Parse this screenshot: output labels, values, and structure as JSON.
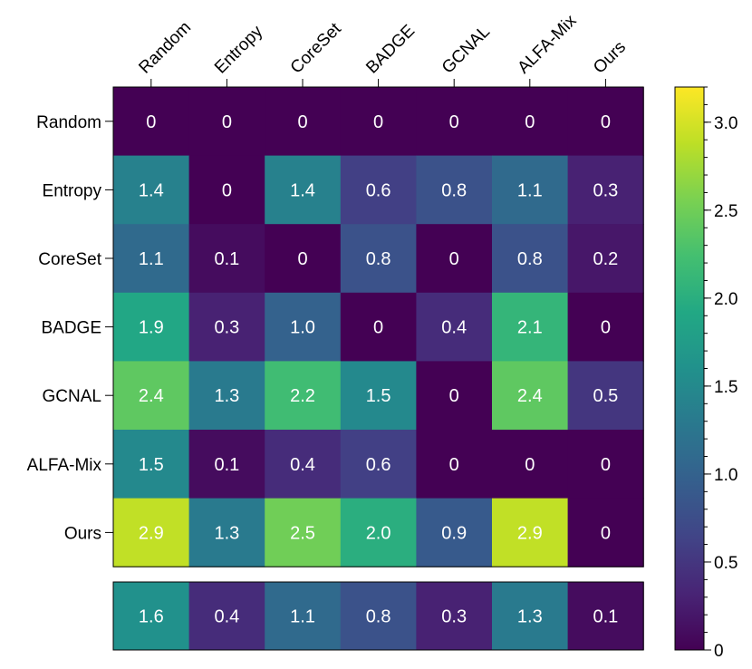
{
  "chart_data": {
    "type": "heatmap",
    "columns": [
      "Random",
      "Entropy",
      "CoreSet",
      "BADGE",
      "GCNAL",
      "ALFA-Mix",
      "Ours"
    ],
    "rows": [
      "Random",
      "Entropy",
      "CoreSet",
      "BADGE",
      "GCNAL",
      "ALFA-Mix",
      "Ours"
    ],
    "values": [
      [
        0,
        0,
        0,
        0,
        0,
        0,
        0
      ],
      [
        1.4,
        0,
        1.4,
        0.6,
        0.8,
        1.1,
        0.3
      ],
      [
        1.1,
        0.1,
        0,
        0.8,
        0,
        0.8,
        0.2
      ],
      [
        1.9,
        0.3,
        1.0,
        0,
        0.4,
        2.1,
        0
      ],
      [
        2.4,
        1.3,
        2.2,
        1.5,
        0,
        2.4,
        0.5
      ],
      [
        1.5,
        0.1,
        0.4,
        0.6,
        0,
        0,
        0
      ],
      [
        2.9,
        1.3,
        2.5,
        2.0,
        0.9,
        2.9,
        0
      ]
    ],
    "value_labels": [
      [
        "0",
        "0",
        "0",
        "0",
        "0",
        "0",
        "0"
      ],
      [
        "1.4",
        "0",
        "1.4",
        "0.6",
        "0.8",
        "1.1",
        "0.3"
      ],
      [
        "1.1",
        "0.1",
        "0",
        "0.8",
        "0",
        "0.8",
        "0.2"
      ],
      [
        "1.9",
        "0.3",
        "1.0",
        "0",
        "0.4",
        "2.1",
        "0"
      ],
      [
        "2.4",
        "1.3",
        "2.2",
        "1.5",
        "0",
        "2.4",
        "0.5"
      ],
      [
        "1.5",
        "0.1",
        "0.4",
        "0.6",
        "0",
        "0",
        "0"
      ],
      [
        "2.9",
        "1.3",
        "2.5",
        "2.0",
        "0.9",
        "2.9",
        "0"
      ]
    ],
    "summary_row": {
      "values": [
        1.6,
        0.4,
        1.1,
        0.8,
        0.3,
        1.3,
        0.1
      ],
      "labels": [
        "1.6",
        "0.4",
        "1.1",
        "0.8",
        "0.3",
        "1.3",
        "0.1"
      ]
    },
    "colorbar": {
      "colormap": "viridis",
      "range": [
        0,
        3.2
      ],
      "ticks": [
        0,
        0.5,
        1.0,
        1.5,
        2.0,
        2.5,
        3.0
      ],
      "tick_labels": [
        "0",
        "0.5",
        "1.0",
        "1.5",
        "2.0",
        "2.5",
        "3.0"
      ],
      "minor_tick_step": 0.1,
      "placement": "right"
    },
    "title": "",
    "xlabel": "",
    "ylabel": ""
  }
}
